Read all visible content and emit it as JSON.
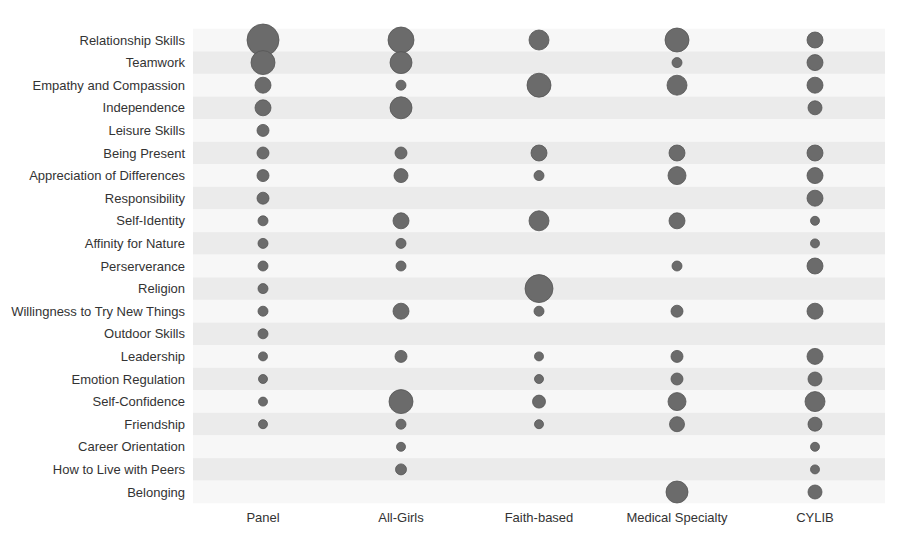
{
  "chart_data": {
    "type": "bubble",
    "categories": [
      "Relationship Skills",
      "Teamwork",
      "Empathy and Compassion",
      "Independence",
      "Leisure Skills",
      "Being Present",
      "Appreciation of Differences",
      "Responsibility",
      "Self-Identity",
      "Affinity for Nature",
      "Perserverance",
      "Religion",
      "Willingness to Try New Things",
      "Outdoor Skills",
      "Leadership",
      "Emotion Regulation",
      "Self-Confidence",
      "Friendship",
      "Career Orientation",
      "How to Live with Peers",
      "Belonging"
    ],
    "color": "#6b6b6b",
    "series": [
      {
        "name": "Panel",
        "values": [
          16,
          12,
          8,
          8,
          6,
          6,
          6,
          6,
          5,
          5,
          5,
          5,
          5,
          5,
          4.5,
          4.5,
          4.5,
          4.5,
          null,
          null,
          null
        ]
      },
      {
        "name": "All-Girls",
        "values": [
          13,
          11,
          5,
          11,
          null,
          6,
          7,
          null,
          8,
          5,
          5,
          null,
          8,
          null,
          6,
          null,
          12,
          5,
          4.5,
          5.5,
          null
        ]
      },
      {
        "name": "Faith-based",
        "values": [
          10,
          null,
          12,
          null,
          null,
          8,
          5,
          null,
          10,
          null,
          null,
          14,
          5,
          null,
          4.5,
          4.5,
          6.5,
          4.5,
          null,
          null,
          null
        ]
      },
      {
        "name": "Medical Specialty",
        "values": [
          12,
          5,
          10,
          null,
          null,
          8,
          9,
          null,
          8,
          null,
          5,
          null,
          6,
          null,
          6,
          6,
          9,
          7.5,
          null,
          null,
          11
        ]
      },
      {
        "name": "CYLIB",
        "values": [
          8,
          8,
          8,
          7,
          null,
          8,
          8,
          8,
          4.5,
          4.5,
          8,
          null,
          8,
          null,
          8,
          7,
          10,
          7,
          4.5,
          4.5,
          7
        ]
      }
    ]
  }
}
